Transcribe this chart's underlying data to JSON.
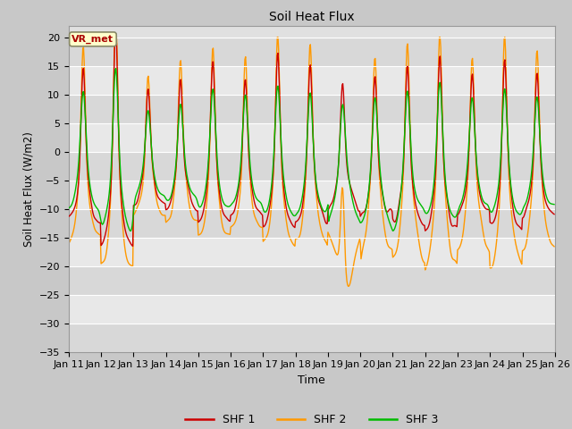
{
  "title": "Soil Heat Flux",
  "xlabel": "Time",
  "ylabel": "Soil Heat Flux (W/m2)",
  "ylim": [
    -35,
    22
  ],
  "yticks": [
    -35,
    -30,
    -25,
    -20,
    -15,
    -10,
    -5,
    0,
    5,
    10,
    15,
    20
  ],
  "colors": {
    "SHF 1": "#cc0000",
    "SHF 2": "#ff9900",
    "SHF 3": "#00bb00"
  },
  "linewidth": 1.0,
  "annotation_text": "VR_met",
  "annotation_color": "#aa0000",
  "annotation_bg": "#ffffcc",
  "x_start": 11,
  "x_end": 26,
  "x_ticks": [
    11,
    12,
    13,
    14,
    15,
    16,
    17,
    18,
    19,
    20,
    21,
    22,
    23,
    24,
    25,
    26
  ],
  "figsize": [
    6.4,
    4.8
  ],
  "dpi": 100
}
